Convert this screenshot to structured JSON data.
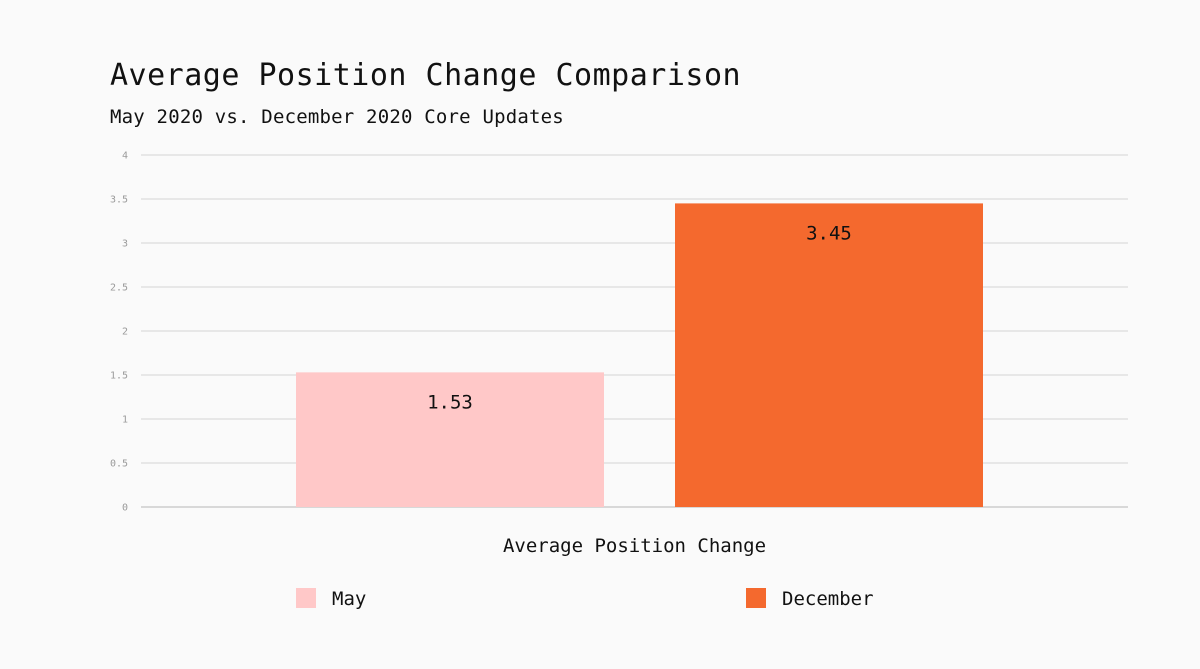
{
  "chart_data": {
    "type": "bar",
    "title": "Average Position Change Comparison",
    "subtitle": "May 2020 vs. December 2020 Core Updates",
    "xlabel": "Average Position Change",
    "ylabel": "",
    "ylim": [
      0,
      4
    ],
    "yticks": [
      0,
      0.5,
      1,
      1.5,
      2,
      2.5,
      3,
      3.5,
      4
    ],
    "grid": true,
    "legend_position": "bottom",
    "series": [
      {
        "name": "May",
        "value": 1.53,
        "label": "1.53",
        "color": "#ffc8c8"
      },
      {
        "name": "December",
        "value": 3.45,
        "label": "3.45",
        "color": "#f4692e"
      }
    ]
  }
}
